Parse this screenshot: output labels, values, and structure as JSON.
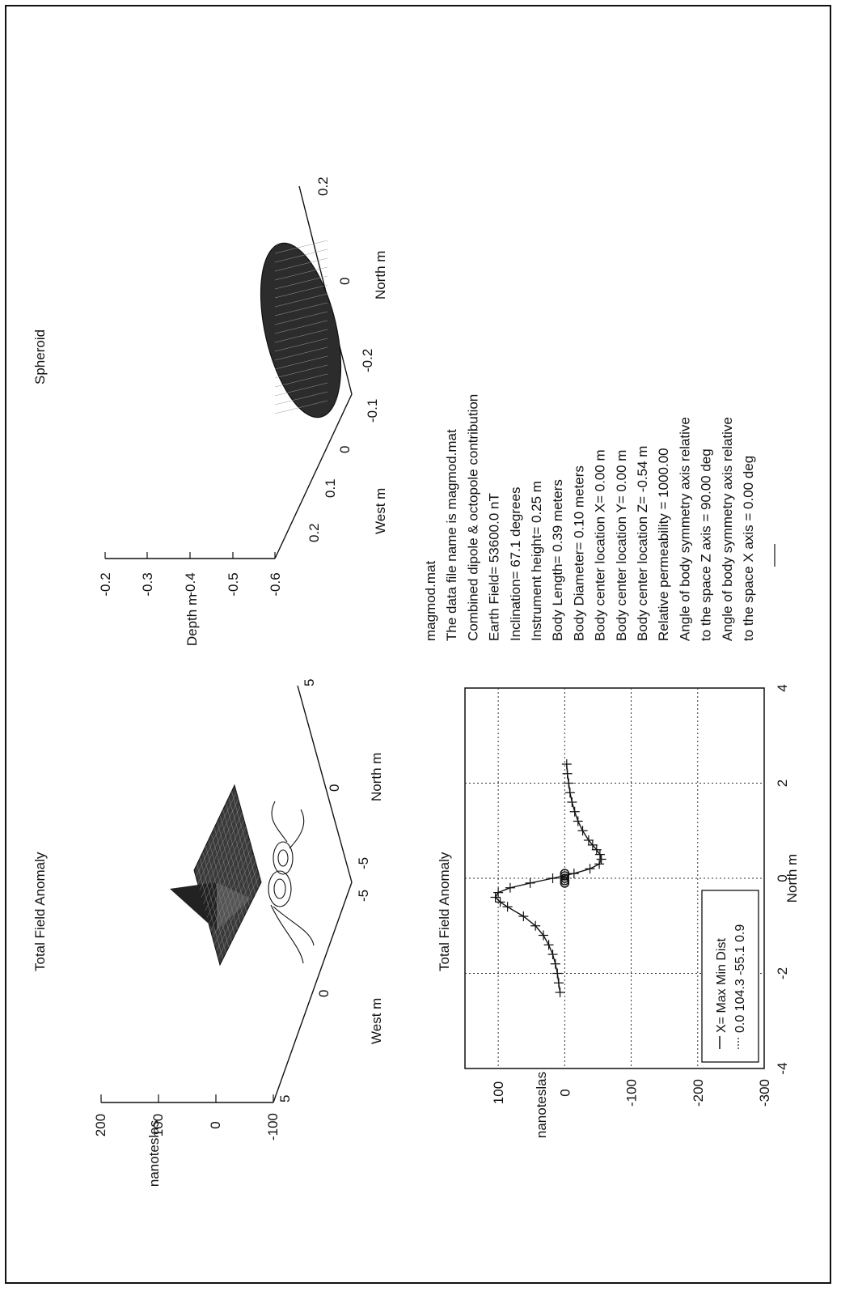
{
  "panels": {
    "surface": {
      "title": "Total Field Anomaly",
      "zlabel": "nanoteslas",
      "z_ticks": [
        "200",
        "100",
        "0",
        "-100"
      ],
      "x_ticks": [
        "5",
        "0",
        "-5"
      ],
      "x_label": "West  m",
      "y_ticks": [
        "-5",
        "0",
        "5"
      ],
      "y_label": "North  m"
    },
    "spheroid": {
      "title": "Spheroid",
      "zlabel": "Depth  m",
      "z_ticks": [
        "-0.2",
        "-0.3",
        "-0.4",
        "-0.5",
        "-0.6"
      ],
      "x_ticks": [
        "0.2",
        "0.1",
        "0",
        "-0.1"
      ],
      "x_label": "West  m",
      "y_ticks": [
        "-0.2",
        "0",
        "0.2"
      ],
      "y_label": "North  m"
    },
    "info": {
      "lines": [
        "magmod.mat",
        "The data file name is magmod.mat",
        "Combined dipole & octopole contribution",
        "Earth Field=          53600.0 nT",
        "Inclination=          67.1 degrees",
        "Instrument height=     0.25  m",
        "Body Length=           0.39  meters",
        "Body Diameter=          0.10  meters",
        "Body center location X=  0.00 m",
        "Body center location Y=  0.00 m",
        "Body center location Z= -0.54 m",
        "Relative permeability = 1000.00",
        "Angle of body symmetry axis relative",
        "   to the space Z axis = 90.00  deg",
        "Angle of body symmetry axis relative",
        "   to the space X axis =  0.00  deg"
      ]
    }
  },
  "chart_data": {
    "type": "line",
    "title": "Total Field Anomaly",
    "xlabel": "North  m",
    "ylabel": "nanoteslas",
    "xlim": [
      -4,
      4
    ],
    "ylim": [
      -300,
      150
    ],
    "x_ticks": [
      "-4",
      "-2",
      "0",
      "2",
      "4"
    ],
    "y_ticks": [
      "100",
      "0",
      "-100",
      "-200",
      "-300"
    ],
    "grid": true,
    "legend_position": "bottom-left",
    "legend": {
      "header": "X=  Max  Min  Dist",
      "row": "0.0 104.3 -55.1   0.9"
    },
    "series": [
      {
        "name": "X=",
        "x": [
          -2.4,
          -2.2,
          -2.0,
          -1.8,
          -1.6,
          -1.4,
          -1.2,
          -1.0,
          -0.8,
          -0.6,
          -0.5,
          -0.4,
          -0.3,
          -0.2,
          -0.1,
          0.0,
          0.1,
          0.2,
          0.3,
          0.4,
          0.5,
          0.6,
          0.7,
          0.8,
          1.0,
          1.2,
          1.4,
          1.6,
          1.8,
          2.0,
          2.2,
          2.4
        ],
        "y": [
          7,
          9,
          11,
          14,
          18,
          24,
          32,
          44,
          62,
          86,
          97,
          104.3,
          100,
          82,
          52,
          18,
          -14,
          -38,
          -52,
          -55.1,
          -53,
          -48,
          -42,
          -36,
          -27,
          -20,
          -15,
          -11,
          -8,
          -6,
          -4,
          -3
        ]
      }
    ],
    "markers": {
      "x": [
        -0.1,
        -0.05,
        0.0,
        0.05,
        0.1
      ],
      "y": [
        0,
        0,
        0,
        0,
        0
      ]
    }
  }
}
